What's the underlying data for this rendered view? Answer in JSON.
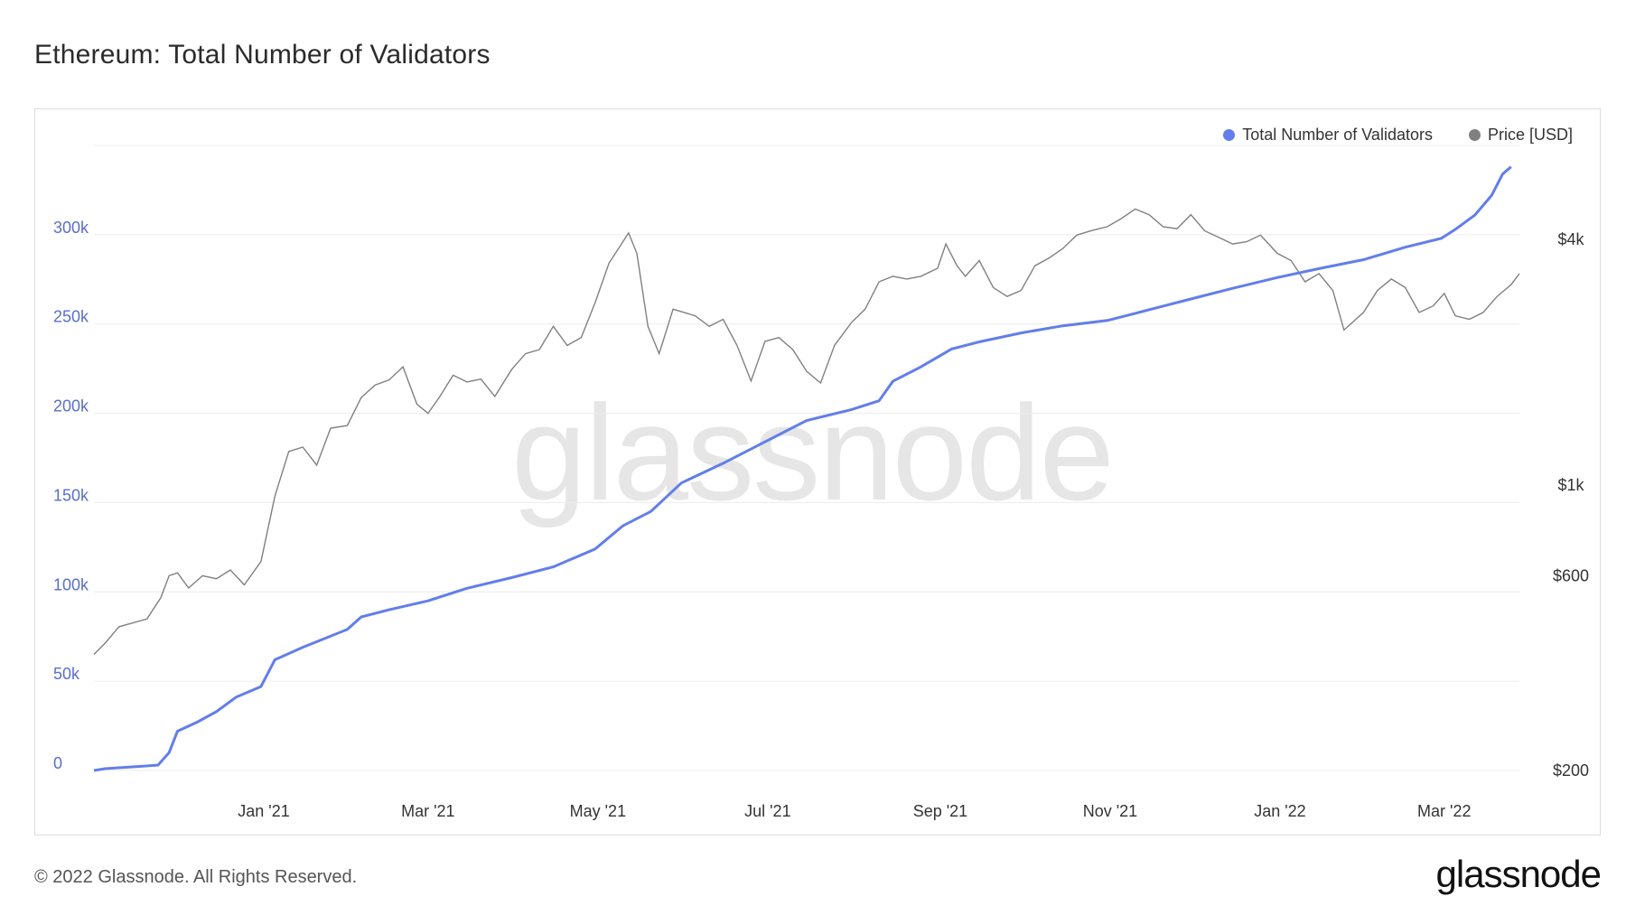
{
  "page": {
    "title": "Ethereum: Total Number of Validators",
    "copyright": "© 2022 Glassnode. All Rights Reserved.",
    "logo_text": "glassnode",
    "watermark_text": "glassnode"
  },
  "legend": {
    "items": [
      {
        "label": "Total Number of Validators",
        "color": "#627eea"
      },
      {
        "label": "Price [USD]",
        "color": "#808080"
      }
    ]
  },
  "chart_data": {
    "type": "line",
    "title": "Ethereum: Total Number of Validators",
    "legend_position": "top-right",
    "grid": true,
    "x_range": [
      "2020-11-01",
      "2022-03-28"
    ],
    "x_ticks": [
      {
        "label": "Jan '21",
        "date": "2021-01-01"
      },
      {
        "label": "Mar '21",
        "date": "2021-03-01"
      },
      {
        "label": "May '21",
        "date": "2021-05-01"
      },
      {
        "label": "Jul '21",
        "date": "2021-07-01"
      },
      {
        "label": "Sep '21",
        "date": "2021-09-01"
      },
      {
        "label": "Nov '21",
        "date": "2021-11-01"
      },
      {
        "label": "Jan '22",
        "date": "2022-01-01"
      },
      {
        "label": "Mar '22",
        "date": "2022-03-01"
      }
    ],
    "y_left": {
      "scale": "linear",
      "range": [
        0,
        350000
      ],
      "ticks": [
        {
          "label": "0",
          "value": 0
        },
        {
          "label": "50k",
          "value": 50000
        },
        {
          "label": "100k",
          "value": 100000
        },
        {
          "label": "150k",
          "value": 150000
        },
        {
          "label": "200k",
          "value": 200000
        },
        {
          "label": "250k",
          "value": 250000
        },
        {
          "label": "300k",
          "value": 300000
        }
      ]
    },
    "y_right": {
      "scale": "log",
      "range": [
        200,
        6800
      ],
      "ticks": [
        {
          "label": "$200",
          "value": 200
        },
        {
          "label": "$600",
          "value": 600
        },
        {
          "label": "$1k",
          "value": 1000
        },
        {
          "label": "$4k",
          "value": 4000
        }
      ]
    },
    "series": [
      {
        "name": "Total Number of Validators",
        "axis": "left",
        "color": "#627eea",
        "points": [
          [
            "2020-11-01",
            0
          ],
          [
            "2020-11-05",
            1000
          ],
          [
            "2020-11-15",
            2000
          ],
          [
            "2020-11-24",
            3000
          ],
          [
            "2020-11-28",
            10000
          ],
          [
            "2020-12-01",
            22000
          ],
          [
            "2020-12-08",
            27000
          ],
          [
            "2020-12-15",
            33000
          ],
          [
            "2020-12-22",
            41000
          ],
          [
            "2020-12-31",
            47000
          ],
          [
            "2021-01-05",
            62000
          ],
          [
            "2021-01-15",
            69000
          ],
          [
            "2021-01-31",
            79000
          ],
          [
            "2021-02-05",
            86000
          ],
          [
            "2021-02-15",
            90000
          ],
          [
            "2021-03-01",
            95000
          ],
          [
            "2021-03-15",
            102000
          ],
          [
            "2021-03-31",
            108000
          ],
          [
            "2021-04-15",
            114000
          ],
          [
            "2021-04-30",
            124000
          ],
          [
            "2021-05-10",
            137000
          ],
          [
            "2021-05-20",
            145000
          ],
          [
            "2021-05-31",
            161000
          ],
          [
            "2021-06-15",
            172000
          ],
          [
            "2021-06-30",
            184000
          ],
          [
            "2021-07-15",
            196000
          ],
          [
            "2021-07-31",
            202000
          ],
          [
            "2021-08-10",
            207000
          ],
          [
            "2021-08-15",
            218000
          ],
          [
            "2021-08-25",
            226000
          ],
          [
            "2021-09-05",
            236000
          ],
          [
            "2021-09-15",
            240000
          ],
          [
            "2021-09-30",
            245000
          ],
          [
            "2021-10-15",
            249000
          ],
          [
            "2021-10-31",
            252000
          ],
          [
            "2021-11-10",
            256000
          ],
          [
            "2021-11-20",
            260000
          ],
          [
            "2021-11-30",
            264000
          ],
          [
            "2021-12-15",
            270000
          ],
          [
            "2021-12-31",
            276000
          ],
          [
            "2022-01-15",
            281000
          ],
          [
            "2022-01-31",
            286000
          ],
          [
            "2022-02-15",
            293000
          ],
          [
            "2022-02-28",
            298000
          ],
          [
            "2022-03-05",
            303000
          ],
          [
            "2022-03-12",
            311000
          ],
          [
            "2022-03-18",
            322000
          ],
          [
            "2022-03-22",
            334000
          ],
          [
            "2022-03-25",
            338000
          ]
        ]
      },
      {
        "name": "Price [USD]",
        "axis": "right",
        "color": "#808080",
        "points": [
          [
            "2020-11-01",
            385
          ],
          [
            "2020-11-05",
            410
          ],
          [
            "2020-11-10",
            450
          ],
          [
            "2020-11-15",
            460
          ],
          [
            "2020-11-20",
            470
          ],
          [
            "2020-11-25",
            530
          ],
          [
            "2020-11-28",
            600
          ],
          [
            "2020-12-01",
            610
          ],
          [
            "2020-12-05",
            560
          ],
          [
            "2020-12-10",
            600
          ],
          [
            "2020-12-15",
            590
          ],
          [
            "2020-12-20",
            620
          ],
          [
            "2020-12-25",
            570
          ],
          [
            "2020-12-31",
            650
          ],
          [
            "2021-01-05",
            940
          ],
          [
            "2021-01-10",
            1210
          ],
          [
            "2021-01-15",
            1240
          ],
          [
            "2021-01-20",
            1120
          ],
          [
            "2021-01-25",
            1380
          ],
          [
            "2021-01-31",
            1400
          ],
          [
            "2021-02-05",
            1640
          ],
          [
            "2021-02-10",
            1760
          ],
          [
            "2021-02-15",
            1810
          ],
          [
            "2021-02-20",
            1950
          ],
          [
            "2021-02-25",
            1580
          ],
          [
            "2021-03-01",
            1500
          ],
          [
            "2021-03-05",
            1640
          ],
          [
            "2021-03-10",
            1860
          ],
          [
            "2021-03-15",
            1790
          ],
          [
            "2021-03-20",
            1820
          ],
          [
            "2021-03-25",
            1650
          ],
          [
            "2021-03-31",
            1920
          ],
          [
            "2021-04-05",
            2100
          ],
          [
            "2021-04-10",
            2150
          ],
          [
            "2021-04-15",
            2450
          ],
          [
            "2021-04-20",
            2200
          ],
          [
            "2021-04-25",
            2300
          ],
          [
            "2021-04-30",
            2800
          ],
          [
            "2021-05-05",
            3500
          ],
          [
            "2021-05-10",
            3950
          ],
          [
            "2021-05-12",
            4150
          ],
          [
            "2021-05-15",
            3700
          ],
          [
            "2021-05-19",
            2450
          ],
          [
            "2021-05-23",
            2100
          ],
          [
            "2021-05-28",
            2700
          ],
          [
            "2021-06-01",
            2650
          ],
          [
            "2021-06-05",
            2600
          ],
          [
            "2021-06-10",
            2450
          ],
          [
            "2021-06-15",
            2550
          ],
          [
            "2021-06-20",
            2200
          ],
          [
            "2021-06-25",
            1800
          ],
          [
            "2021-06-30",
            2250
          ],
          [
            "2021-07-05",
            2300
          ],
          [
            "2021-07-10",
            2150
          ],
          [
            "2021-07-15",
            1900
          ],
          [
            "2021-07-20",
            1780
          ],
          [
            "2021-07-25",
            2200
          ],
          [
            "2021-07-31",
            2500
          ],
          [
            "2021-08-05",
            2700
          ],
          [
            "2021-08-10",
            3150
          ],
          [
            "2021-08-15",
            3250
          ],
          [
            "2021-08-20",
            3200
          ],
          [
            "2021-08-25",
            3250
          ],
          [
            "2021-08-31",
            3400
          ],
          [
            "2021-09-03",
            3900
          ],
          [
            "2021-09-07",
            3450
          ],
          [
            "2021-09-10",
            3250
          ],
          [
            "2021-09-15",
            3550
          ],
          [
            "2021-09-20",
            3050
          ],
          [
            "2021-09-25",
            2900
          ],
          [
            "2021-09-30",
            3000
          ],
          [
            "2021-10-05",
            3450
          ],
          [
            "2021-10-10",
            3600
          ],
          [
            "2021-10-15",
            3800
          ],
          [
            "2021-10-20",
            4100
          ],
          [
            "2021-10-25",
            4200
          ],
          [
            "2021-10-31",
            4300
          ],
          [
            "2021-11-05",
            4500
          ],
          [
            "2021-11-10",
            4750
          ],
          [
            "2021-11-15",
            4600
          ],
          [
            "2021-11-20",
            4300
          ],
          [
            "2021-11-25",
            4250
          ],
          [
            "2021-11-30",
            4600
          ],
          [
            "2021-12-05",
            4200
          ],
          [
            "2021-12-10",
            4050
          ],
          [
            "2021-12-15",
            3900
          ],
          [
            "2021-12-20",
            3950
          ],
          [
            "2021-12-25",
            4100
          ],
          [
            "2021-12-31",
            3700
          ],
          [
            "2022-01-05",
            3550
          ],
          [
            "2022-01-10",
            3150
          ],
          [
            "2022-01-15",
            3300
          ],
          [
            "2022-01-20",
            3000
          ],
          [
            "2022-01-24",
            2400
          ],
          [
            "2022-01-31",
            2650
          ],
          [
            "2022-02-05",
            3000
          ],
          [
            "2022-02-10",
            3200
          ],
          [
            "2022-02-15",
            3050
          ],
          [
            "2022-02-20",
            2650
          ],
          [
            "2022-02-25",
            2750
          ],
          [
            "2022-03-01",
            2950
          ],
          [
            "2022-03-05",
            2600
          ],
          [
            "2022-03-10",
            2550
          ],
          [
            "2022-03-15",
            2650
          ],
          [
            "2022-03-20",
            2900
          ],
          [
            "2022-03-25",
            3100
          ],
          [
            "2022-03-28",
            3300
          ]
        ]
      }
    ]
  }
}
